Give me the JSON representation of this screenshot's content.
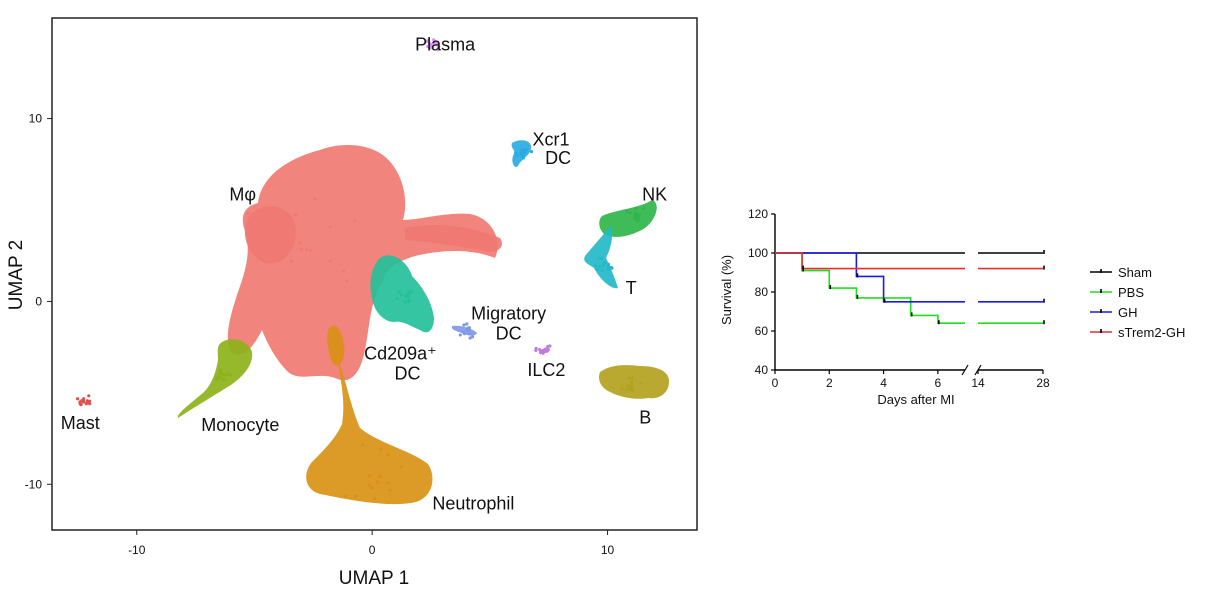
{
  "chart_data": [
    {
      "type": "scatter",
      "xlabel": "UMAP 1",
      "ylabel": "UMAP 2",
      "xlim": [
        -13.6,
        13.8
      ],
      "ylim": [
        -12.5,
        15.5
      ],
      "xticks": [
        "-10",
        "0",
        "10"
      ],
      "yticks": [
        "10",
        "0",
        "-10"
      ],
      "clusters": [
        {
          "name": "Mφ",
          "color": "#f07a72",
          "x": -3.0,
          "y": 3.0,
          "label_x": -5.5,
          "label_y": 5.9
        },
        {
          "name": "Plasma",
          "color": "#d98ff0",
          "x": 2.6,
          "y": 14.1,
          "label_x": 3.1,
          "label_y": 14.1
        },
        {
          "name": "Xcr1",
          "color": "#2aaae2",
          "x": 6.4,
          "y": 8.2,
          "label_x": 7.6,
          "label_y": 8.9
        },
        {
          "name": "DC",
          "color": "",
          "x": null,
          "y": null,
          "label_x": 7.9,
          "label_y": 7.9
        },
        {
          "name": "NK",
          "color": "#2fb64a",
          "x": 11.2,
          "y": 4.8,
          "label_x": 12.0,
          "label_y": 5.9
        },
        {
          "name": "T",
          "color": "#24b8c8",
          "x": 9.8,
          "y": 2.0,
          "label_x": 11.0,
          "label_y": 0.8
        },
        {
          "name": "Cd209a⁺",
          "color": "#24c09a",
          "x": 1.4,
          "y": 0.3,
          "label_x": 1.2,
          "label_y": -2.8
        },
        {
          "name": "DC",
          "color": "",
          "x": null,
          "y": null,
          "label_x": 1.5,
          "label_y": -3.9
        },
        {
          "name": "Migratory",
          "color": "#7f98e8",
          "x": 4.1,
          "y": -1.6,
          "label_x": 5.8,
          "label_y": -0.6
        },
        {
          "name": "DC",
          "color": "",
          "x": null,
          "y": null,
          "label_x": 5.8,
          "label_y": -1.7
        },
        {
          "name": "ILC2",
          "color": "#c07be0",
          "x": 7.3,
          "y": -2.7,
          "label_x": 7.4,
          "label_y": -3.7
        },
        {
          "name": "B",
          "color": "#b3a21e",
          "x": 11.0,
          "y": -4.6,
          "label_x": 11.6,
          "label_y": -6.3
        },
        {
          "name": "Mast",
          "color": "#e05050",
          "x": -12.3,
          "y": -5.4,
          "label_x": -12.4,
          "label_y": -6.6
        },
        {
          "name": "Monocyte",
          "color": "#8cb319",
          "x": -6.4,
          "y": -3.9,
          "label_x": -5.6,
          "label_y": -6.7
        },
        {
          "name": "Neutrophil",
          "color": "#d99115",
          "x": -0.2,
          "y": -9.3,
          "label_x": 4.3,
          "label_y": -11.0
        }
      ]
    },
    {
      "type": "line",
      "xlabel": "Days after MI",
      "ylabel": "Survival (%)",
      "ylim": [
        40,
        120
      ],
      "yticks": [
        120,
        100,
        80,
        60,
        40
      ],
      "xticks": [
        "0",
        "2",
        "4",
        "6",
        "14",
        "28"
      ],
      "axis_break": "between 7 and 14",
      "legend_position": "right",
      "series": [
        {
          "name": "Sham",
          "color": "#000000",
          "x": [
            0,
            7,
            14,
            28
          ],
          "y": [
            100,
            100,
            100,
            100
          ]
        },
        {
          "name": "PBS",
          "color": "#22dd22",
          "x": [
            0,
            1,
            1,
            2,
            2,
            3,
            3,
            4,
            4,
            5,
            5,
            6,
            6,
            7,
            14,
            28
          ],
          "y": [
            100,
            100,
            91,
            91,
            82,
            82,
            77,
            77,
            77,
            77,
            68,
            68,
            64,
            64,
            64,
            64
          ]
        },
        {
          "name": "GH",
          "color": "#1a1ae6",
          "x": [
            0,
            3,
            3,
            4,
            4,
            7,
            14,
            28
          ],
          "y": [
            100,
            100,
            88,
            88,
            75,
            75,
            75,
            75
          ]
        },
        {
          "name": "sTrem2-GH",
          "color": "#e03030",
          "x": [
            0,
            1,
            1,
            7,
            14,
            28
          ],
          "y": [
            100,
            100,
            92,
            92,
            92,
            92
          ]
        }
      ]
    }
  ]
}
